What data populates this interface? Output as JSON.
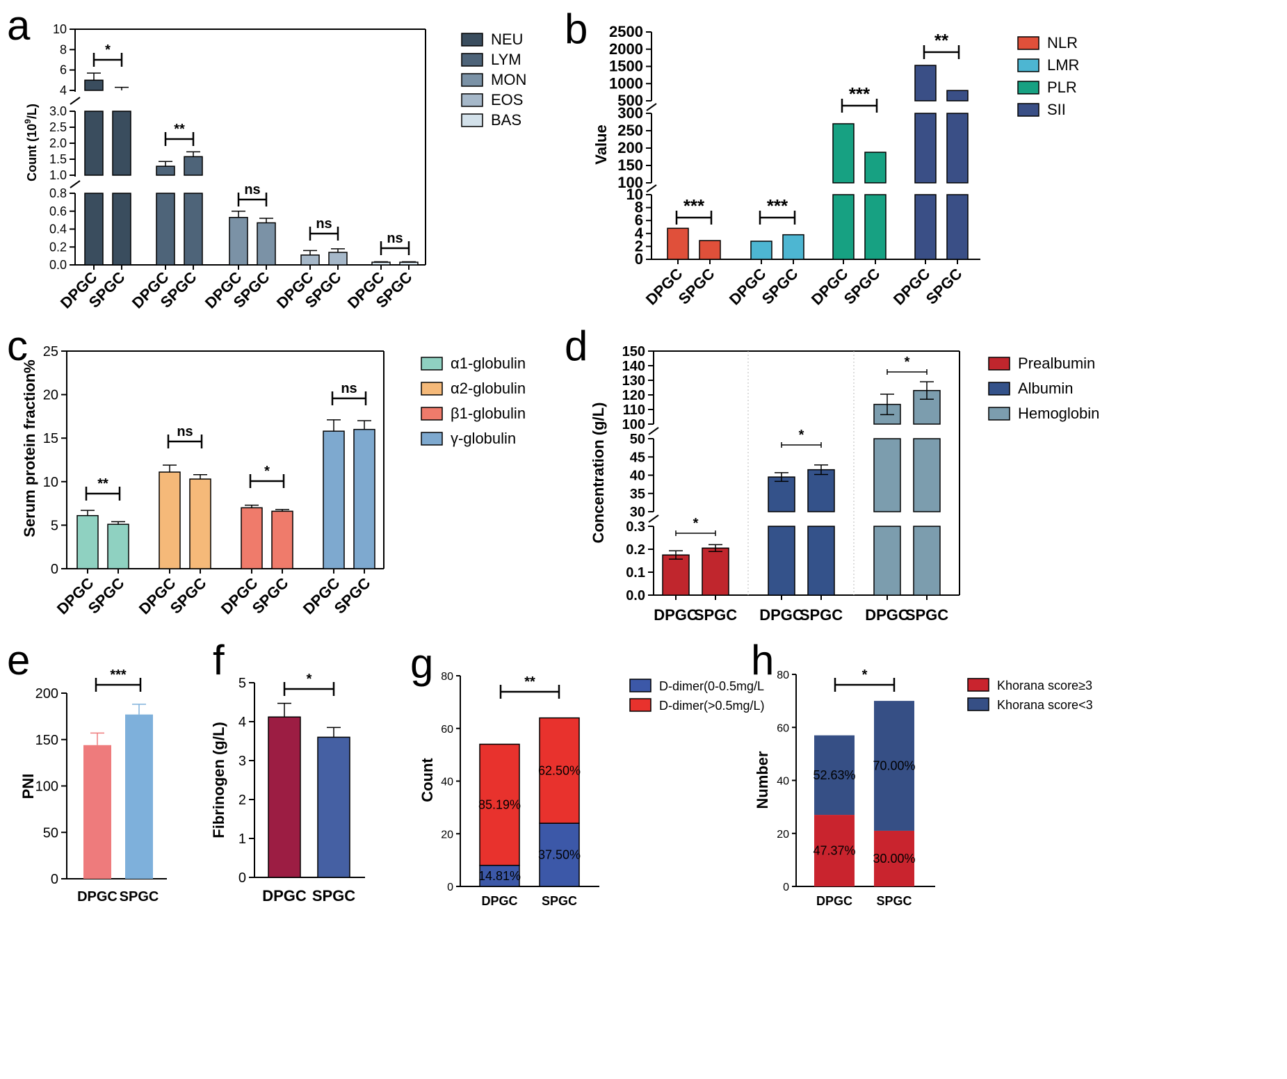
{
  "chart_data": [
    {
      "panel": "a",
      "type": "bar",
      "ylabel": "Count (10",
      "ylabel_sup": "9",
      "ylabel_end": "/L)",
      "axis_segments": [
        {
          "range": [
            0,
            0.8
          ],
          "ticks": [
            "0.0",
            "0.2",
            "0.4",
            "0.6",
            "0.8"
          ]
        },
        {
          "range": [
            1.0,
            3.0
          ],
          "ticks": [
            "1.0",
            "1.5",
            "2.0",
            "2.5",
            "3.0"
          ]
        },
        {
          "range": [
            4,
            10
          ],
          "ticks": [
            "4",
            "6",
            "8",
            "10"
          ]
        }
      ],
      "groups": [
        {
          "name": "NEU",
          "color": "#3a4d5e",
          "bars": [
            {
              "cat": "DPGC",
              "value": 5.0,
              "err": 0.7
            },
            {
              "cat": "SPGC",
              "value": 4.0,
              "err": 0.3
            }
          ],
          "sig": "*"
        },
        {
          "name": "LYM",
          "color": "#4e6479",
          "bars": [
            {
              "cat": "DPGC",
              "value": 1.28,
              "err": 0.15
            },
            {
              "cat": "SPGC",
              "value": 1.58,
              "err": 0.15
            }
          ],
          "sig": "**"
        },
        {
          "name": "MON",
          "color": "#7b92a6",
          "bars": [
            {
              "cat": "DPGC",
              "value": 0.53,
              "err": 0.07
            },
            {
              "cat": "SPGC",
              "value": 0.47,
              "err": 0.05
            }
          ],
          "sig": "ns"
        },
        {
          "name": "EOS",
          "color": "#a6b8c9",
          "bars": [
            {
              "cat": "DPGC",
              "value": 0.11,
              "err": 0.05
            },
            {
              "cat": "SPGC",
              "value": 0.14,
              "err": 0.04
            }
          ],
          "sig": "ns"
        },
        {
          "name": "BAS",
          "color": "#d3e1ea",
          "bars": [
            {
              "cat": "DPGC",
              "value": 0.03,
              "err": 0.005
            },
            {
              "cat": "SPGC",
              "value": 0.03,
              "err": 0.005
            }
          ],
          "sig": "ns"
        }
      ]
    },
    {
      "panel": "b",
      "type": "bar",
      "ylabel": "Value",
      "axis_segments": [
        {
          "range": [
            0,
            10
          ],
          "ticks": [
            "0",
            "2",
            "4",
            "6",
            "8",
            "10"
          ]
        },
        {
          "range": [
            100,
            300
          ],
          "ticks": [
            "100",
            "150",
            "200",
            "250",
            "300"
          ]
        },
        {
          "range": [
            500,
            2500
          ],
          "ticks": [
            "500",
            "1000",
            "1500",
            "2000",
            "2500"
          ]
        }
      ],
      "groups": [
        {
          "name": "NLR",
          "color": "#e0503a",
          "bars": [
            {
              "cat": "DPGC",
              "value": 4.8
            },
            {
              "cat": "SPGC",
              "value": 2.9
            }
          ],
          "sig": "***"
        },
        {
          "name": "LMR",
          "color": "#4db6d2",
          "bars": [
            {
              "cat": "DPGC",
              "value": 2.8
            },
            {
              "cat": "SPGC",
              "value": 3.8
            }
          ],
          "sig": "***"
        },
        {
          "name": "PLR",
          "color": "#17a182",
          "bars": [
            {
              "cat": "DPGC",
              "value": 270
            },
            {
              "cat": "SPGC",
              "value": 188
            }
          ],
          "sig": "***"
        },
        {
          "name": "SII",
          "color": "#3a4f86",
          "bars": [
            {
              "cat": "DPGC",
              "value": 1530
            },
            {
              "cat": "SPGC",
              "value": 800
            }
          ],
          "sig": "**"
        }
      ]
    },
    {
      "panel": "c",
      "type": "bar",
      "ylabel": "Serum protein fraction%",
      "ylim": [
        0,
        25
      ],
      "ticks": [
        "0",
        "5",
        "10",
        "15",
        "20",
        "25"
      ],
      "groups": [
        {
          "name": "α1-globulin",
          "color": "#8fd1c1",
          "bars": [
            {
              "cat": "DPGC",
              "value": 6.1,
              "err": 0.6
            },
            {
              "cat": "SPGC",
              "value": 5.1,
              "err": 0.3
            }
          ],
          "sig": "**"
        },
        {
          "name": "α2-globulin",
          "color": "#f5b979",
          "bars": [
            {
              "cat": "DPGC",
              "value": 11.1,
              "err": 0.8
            },
            {
              "cat": "SPGC",
              "value": 10.3,
              "err": 0.5
            }
          ],
          "sig": "ns"
        },
        {
          "name": "β1-globulin",
          "color": "#ef7b6b",
          "bars": [
            {
              "cat": "DPGC",
              "value": 7.0,
              "err": 0.3
            },
            {
              "cat": "SPGC",
              "value": 6.6,
              "err": 0.2
            }
          ],
          "sig": "*"
        },
        {
          "name": "γ-globulin",
          "color": "#7ea9cf",
          "bars": [
            {
              "cat": "DPGC",
              "value": 15.8,
              "err": 1.3
            },
            {
              "cat": "SPGC",
              "value": 16.0,
              "err": 1.0
            }
          ],
          "sig": "ns"
        }
      ]
    },
    {
      "panel": "d",
      "type": "bar",
      "ylabel": "Concentration (g/L)",
      "axis_segments": [
        {
          "range": [
            0,
            0.3
          ],
          "ticks": [
            "0.0",
            "0.1",
            "0.2",
            "0.3"
          ]
        },
        {
          "range": [
            30,
            50
          ],
          "ticks": [
            "30",
            "35",
            "40",
            "45",
            "50"
          ]
        },
        {
          "range": [
            100,
            150
          ],
          "ticks": [
            "100",
            "110",
            "120",
            "130",
            "140",
            "150"
          ]
        }
      ],
      "groups": [
        {
          "name": "Prealbumin",
          "color": "#c0262d",
          "bars": [
            {
              "cat": "DPGC",
              "value": 0.175,
              "err": 0.018
            },
            {
              "cat": "SPGC",
              "value": 0.205,
              "err": 0.015
            }
          ],
          "sig": "*"
        },
        {
          "name": "Albumin",
          "color": "#34528a",
          "bars": [
            {
              "cat": "DPGC",
              "value": 39.5,
              "err": 1.2
            },
            {
              "cat": "SPGC",
              "value": 41.5,
              "err": 1.3
            }
          ],
          "sig": "*"
        },
        {
          "name": "Hemoglobin",
          "color": "#7c9dae",
          "bars": [
            {
              "cat": "DPGC",
              "value": 113.5,
              "err": 7
            },
            {
              "cat": "SPGC",
              "value": 123,
              "err": 6
            }
          ],
          "sig": "*"
        }
      ]
    },
    {
      "panel": "e",
      "type": "bar",
      "ylabel": "PNI",
      "ylim": [
        0,
        200
      ],
      "ticks": [
        "0",
        "50",
        "100",
        "150",
        "200"
      ],
      "categories": [
        "DPGC",
        "SPGC"
      ],
      "values": [
        144,
        177
      ],
      "errors": [
        13,
        11
      ],
      "colors": [
        "#ee7b7c",
        "#7eb0db"
      ],
      "sig": "***"
    },
    {
      "panel": "f",
      "type": "bar",
      "ylabel": "Fibrinogen (g/L)",
      "ylim": [
        0,
        5
      ],
      "ticks": [
        "0",
        "1",
        "2",
        "3",
        "4",
        "5"
      ],
      "categories": [
        "DPGC",
        "SPGC"
      ],
      "values": [
        4.12,
        3.6
      ],
      "errors": [
        0.35,
        0.25
      ],
      "colors": [
        "#9c1d43",
        "#4560a3"
      ],
      "sig": "*"
    },
    {
      "panel": "g",
      "type": "bar",
      "stacked": true,
      "ylabel": "Count",
      "ylim": [
        0,
        80
      ],
      "ticks": [
        "0",
        "20",
        "40",
        "60",
        "80"
      ],
      "categories": [
        "DPGC",
        "SPGC"
      ],
      "series": [
        {
          "name": "D-dimer(0-0.5mg/L",
          "color": "#3c58a8",
          "values": [
            8,
            24
          ],
          "labels": [
            "14.81%",
            "37.50%"
          ]
        },
        {
          "name": "D-dimer(>0.5mg/L)",
          "color": "#e8322d",
          "values": [
            46,
            40
          ],
          "labels": [
            "85.19%",
            "62.50%"
          ]
        }
      ],
      "sig": "**"
    },
    {
      "panel": "h",
      "type": "bar",
      "stacked": true,
      "ylabel": "Number",
      "ylim": [
        0,
        80
      ],
      "ticks": [
        "0",
        "20",
        "40",
        "60",
        "80"
      ],
      "categories": [
        "DPGC",
        "SPGC"
      ],
      "series": [
        {
          "name": "Khorana score≥3",
          "color": "#c9242e",
          "values": [
            27,
            21
          ],
          "labels": [
            "47.37%",
            "30.00%"
          ]
        },
        {
          "name": "Khorana score<3",
          "color": "#364f85",
          "values": [
            30,
            49
          ],
          "labels": [
            "52.63%",
            "70.00%"
          ]
        }
      ],
      "sig": "*"
    }
  ]
}
